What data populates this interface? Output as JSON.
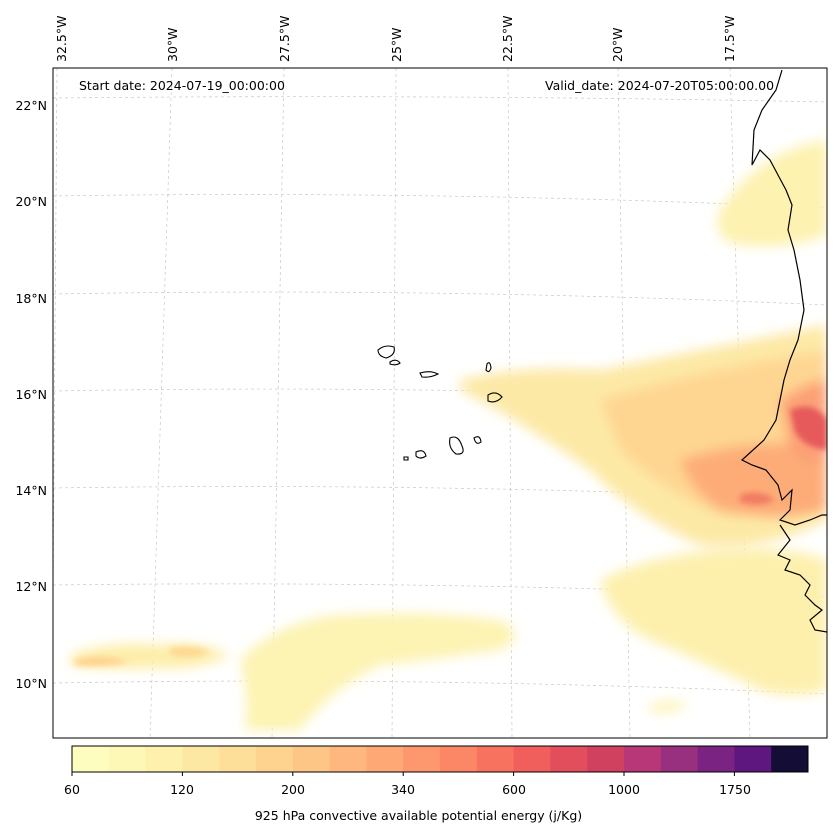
{
  "map": {
    "lon_labels": [
      "32.5°W",
      "30°W",
      "27.5°W",
      "25°W",
      "22.5°W",
      "20°W",
      "17.5°W"
    ],
    "lat_labels": [
      "22°N",
      "20°N",
      "18°N",
      "16°N",
      "14°N",
      "12°N",
      "10°N"
    ],
    "start_date": "Start date: 2024-07-19_00:00:00",
    "valid_date": "Valid_date: 2024-07-20T05:00:00.00",
    "extent": {
      "lon": [
        -33,
        -16
      ],
      "lat": [
        9,
        22.8
      ]
    }
  },
  "colorbar": {
    "label": "925 hPa convective available potential energy (j/Kg)",
    "tick_labels": [
      "60",
      "120",
      "200",
      "340",
      "600",
      "1000",
      "1750"
    ],
    "colors": [
      "#fcfdbf",
      "#fdf8b6",
      "#fdf1ad",
      "#fde8a3",
      "#fedf99",
      "#fed38f",
      "#fec686",
      "#feb77e",
      "#fea875",
      "#fd976d",
      "#fb8766",
      "#f7735f",
      "#f05f5c",
      "#e34e5c",
      "#d0415f",
      "#b73779",
      "#99307f",
      "#7b2382",
      "#5d177f",
      "#140e36"
    ]
  }
}
